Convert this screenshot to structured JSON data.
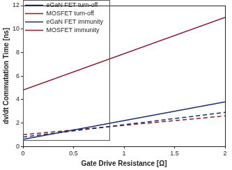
{
  "chart_data": {
    "type": "line",
    "xlabel": "Gate Drive Resistance [Ω]",
    "ylabel": "dv/dt Commutation Time [ns]",
    "x": [
      0,
      2
    ],
    "xlim": [
      0,
      2
    ],
    "xticks": [
      0,
      0.5,
      1,
      1.5,
      2
    ],
    "ylim": [
      0,
      12
    ],
    "yticks": [
      0,
      2,
      4,
      6,
      8,
      10,
      12
    ],
    "grid": false,
    "legend": "upper left",
    "series": [
      {
        "name": "eGaN FET turn-off",
        "color": "#1c2a6b",
        "line_style": "solid",
        "values": [
          0.6,
          3.8
        ]
      },
      {
        "name": "MOSFET turn-off",
        "color": "#8b1a2b",
        "line_style": "solid",
        "values": [
          4.8,
          11.0
        ]
      },
      {
        "name": "eGaN FET immunity",
        "color": "#1c2a6b",
        "line_style": "dashed",
        "values": [
          0.8,
          2.9
        ]
      },
      {
        "name": "MOSFET immunity",
        "color": "#8b1a2b",
        "line_style": "dashed",
        "values": [
          1.0,
          2.6
        ]
      }
    ]
  }
}
